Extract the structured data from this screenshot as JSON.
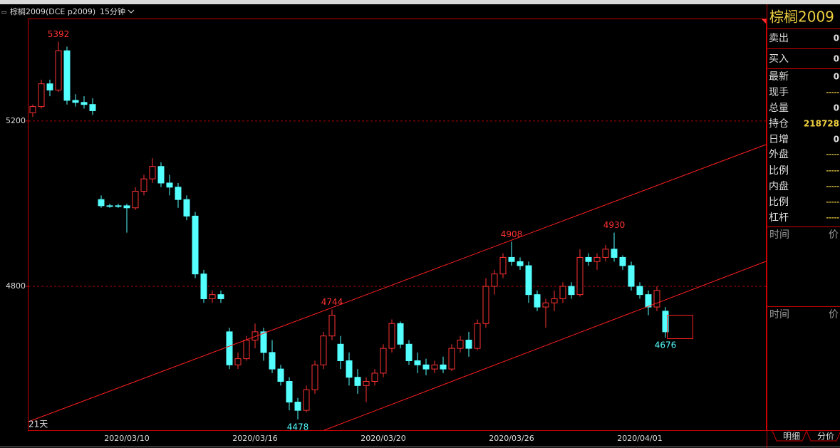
{
  "header": {
    "symbol": "棕榈2009(DCE p2009)",
    "period": "15分钟"
  },
  "chart_data": {
    "type": "candlestick",
    "categories": [
      null,
      null,
      null,
      null,
      null,
      null,
      null,
      null,
      null,
      null,
      null,
      "2020/03/10",
      null,
      null,
      null,
      null,
      null,
      null,
      null,
      null,
      null,
      null,
      null,
      null,
      null,
      null,
      "2020/03/16",
      null,
      null,
      null,
      null,
      null,
      null,
      null,
      null,
      null,
      null,
      null,
      null,
      null,
      null,
      "2020/03/20",
      null,
      null,
      null,
      null,
      null,
      null,
      null,
      null,
      null,
      null,
      null,
      null,
      null,
      null,
      "2020/03/26",
      null,
      null,
      null,
      null,
      null,
      null,
      null,
      null,
      null,
      null,
      null,
      null,
      null,
      null,
      "2020/04/01",
      null,
      null,
      null
    ],
    "candles": [
      [
        5220,
        5240,
        5210,
        5235
      ],
      [
        5235,
        5300,
        5230,
        5290
      ],
      [
        5290,
        5300,
        5260,
        5275
      ],
      [
        5275,
        5392,
        5270,
        5370
      ],
      [
        5370,
        5380,
        5240,
        5250
      ],
      [
        5250,
        5265,
        5235,
        5245
      ],
      [
        5245,
        5260,
        5230,
        5240
      ],
      [
        5240,
        5255,
        5215,
        5225
      ],
      [
        5010,
        5020,
        4990,
        4995
      ],
      [
        4995,
        5000,
        4990,
        4995
      ],
      [
        4995,
        5000,
        4990,
        4995
      ],
      [
        4995,
        5000,
        4930,
        4990
      ],
      [
        4990,
        5040,
        4985,
        5030
      ],
      [
        5030,
        5070,
        5020,
        5060
      ],
      [
        5060,
        5110,
        5050,
        5090
      ],
      [
        5090,
        5100,
        5040,
        5050
      ],
      [
        5050,
        5070,
        5020,
        5040
      ],
      [
        5040,
        5050,
        4990,
        5010
      ],
      [
        5010,
        5020,
        4960,
        4970
      ],
      [
        4970,
        4980,
        4820,
        4830
      ],
      [
        4830,
        4840,
        4760,
        4770
      ],
      [
        4770,
        4790,
        4760,
        4780
      ],
      [
        4780,
        4790,
        4760,
        4770
      ],
      [
        4690,
        4700,
        4600,
        4610
      ],
      [
        4610,
        4640,
        4600,
        4625
      ],
      [
        4625,
        4680,
        4620,
        4670
      ],
      [
        4670,
        4710,
        4650,
        4690
      ],
      [
        4690,
        4700,
        4620,
        4640
      ],
      [
        4640,
        4670,
        4590,
        4600
      ],
      [
        4600,
        4610,
        4560,
        4570
      ],
      [
        4570,
        4580,
        4500,
        4520
      ],
      [
        4520,
        4530,
        4478,
        4500
      ],
      [
        4500,
        4560,
        4495,
        4550
      ],
      [
        4550,
        4620,
        4540,
        4610
      ],
      [
        4610,
        4690,
        4600,
        4680
      ],
      [
        4680,
        4744,
        4670,
        4730
      ],
      [
        4660,
        4680,
        4600,
        4620
      ],
      [
        4620,
        4640,
        4560,
        4580
      ],
      [
        4580,
        4600,
        4540,
        4560
      ],
      [
        4560,
        4580,
        4520,
        4570
      ],
      [
        4570,
        4600,
        4560,
        4590
      ],
      [
        4590,
        4660,
        4580,
        4650
      ],
      [
        4650,
        4720,
        4640,
        4710
      ],
      [
        4710,
        4715,
        4650,
        4660
      ],
      [
        4660,
        4670,
        4610,
        4620
      ],
      [
        4620,
        4640,
        4590,
        4610
      ],
      [
        4610,
        4625,
        4585,
        4600
      ],
      [
        4600,
        4620,
        4590,
        4610
      ],
      [
        4610,
        4630,
        4590,
        4600
      ],
      [
        4600,
        4660,
        4595,
        4650
      ],
      [
        4650,
        4680,
        4640,
        4670
      ],
      [
        4670,
        4690,
        4630,
        4650
      ],
      [
        4650,
        4720,
        4645,
        4710
      ],
      [
        4710,
        4820,
        4700,
        4800
      ],
      [
        4800,
        4840,
        4780,
        4830
      ],
      [
        4830,
        4880,
        4820,
        4870
      ],
      [
        4870,
        4908,
        4850,
        4860
      ],
      [
        4860,
        4870,
        4840,
        4850
      ],
      [
        4850,
        4860,
        4760,
        4780
      ],
      [
        4780,
        4790,
        4740,
        4750
      ],
      [
        4750,
        4770,
        4700,
        4760
      ],
      [
        4760,
        4790,
        4740,
        4770
      ],
      [
        4770,
        4810,
        4760,
        4800
      ],
      [
        4800,
        4810,
        4770,
        4780
      ],
      [
        4780,
        4890,
        4775,
        4870
      ],
      [
        4870,
        4880,
        4850,
        4860
      ],
      [
        4860,
        4880,
        4840,
        4870
      ],
      [
        4870,
        4900,
        4860,
        4890
      ],
      [
        4890,
        4930,
        4860,
        4870
      ],
      [
        4870,
        4875,
        4840,
        4850
      ],
      [
        4850,
        4860,
        4790,
        4800
      ],
      [
        4800,
        4810,
        4770,
        4780
      ],
      [
        4780,
        4790,
        4730,
        4750
      ],
      [
        4750,
        4800,
        4740,
        4790
      ],
      [
        4740,
        4750,
        4676,
        4690
      ]
    ],
    "ylim": [
      4452,
      5448
    ],
    "yticks": [
      4800,
      5200
    ],
    "grid": true,
    "up_color": "#ff3232",
    "down_color": "#54ffff",
    "peaks": [
      5392,
      4744,
      4908,
      4930
    ],
    "troughs": [
      4478,
      4676
    ],
    "range_label": "21天"
  },
  "panel": {
    "title": "棕榈2009",
    "quote": [
      {
        "label": "卖出",
        "value": "0"
      },
      {
        "label": "买入",
        "value": "0"
      },
      {
        "label": "最新",
        "value": "0"
      },
      {
        "label": "现手",
        "value": "-----"
      },
      {
        "label": "总量",
        "value": "0"
      },
      {
        "label": "持仓",
        "value": "218728"
      },
      {
        "label": "日增",
        "value": "0"
      },
      {
        "label": "外盘",
        "value": "-----"
      },
      {
        "label": "比例",
        "value": "-----"
      },
      {
        "label": "内盘",
        "value": "-----"
      },
      {
        "label": "比例",
        "value": "-----"
      },
      {
        "label": "杠杆",
        "value": "-----"
      }
    ],
    "table_headers": [
      [
        "时间",
        "价"
      ],
      [
        "时间",
        "价"
      ]
    ],
    "tabs": [
      "明细",
      "分价"
    ]
  }
}
